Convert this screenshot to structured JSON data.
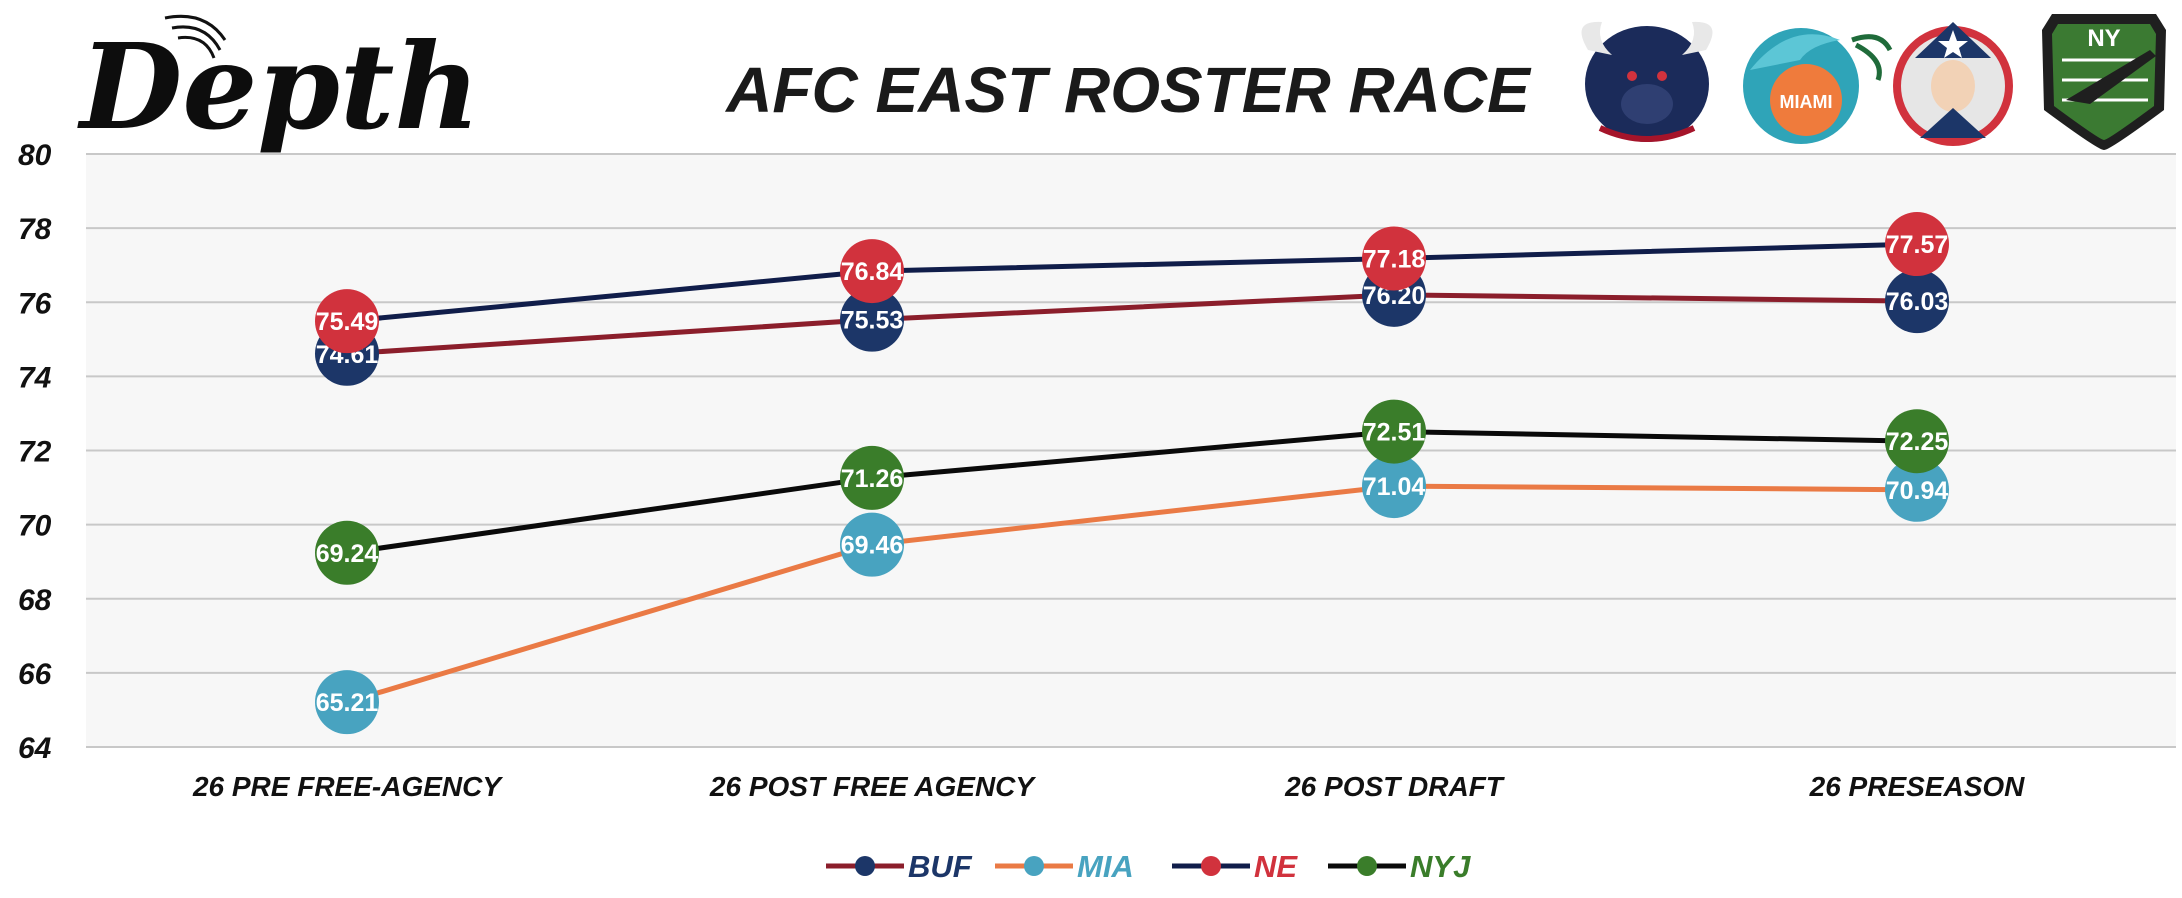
{
  "brand": {
    "logo_text": "Depth"
  },
  "chart_data": {
    "type": "line",
    "title": "AFC EAST ROSTER RACE",
    "categories": [
      "26 PRE FREE-AGENCY",
      "26 POST FREE AGENCY",
      "26 POST DRAFT",
      "26 PRESEASON"
    ],
    "ylim": [
      64,
      80
    ],
    "yticks": [
      64,
      66,
      68,
      70,
      72,
      74,
      76,
      78,
      80
    ],
    "grid": true,
    "legend_position": "bottom-center",
    "series": [
      {
        "name": "BUF",
        "values": [
          74.61,
          75.53,
          76.2,
          76.03
        ],
        "line_color": "#8b1e2b",
        "marker_color": "#1c3668",
        "label_color": "#1c3668"
      },
      {
        "name": "MIA",
        "values": [
          65.21,
          69.46,
          71.04,
          70.94
        ],
        "line_color": "#ea7a45",
        "marker_color": "#48a3c0",
        "label_color": "#48a3c0"
      },
      {
        "name": "NE",
        "values": [
          75.49,
          76.84,
          77.18,
          77.57
        ],
        "line_color": "#101d4a",
        "marker_color": "#d1323d",
        "label_color": "#d1323d"
      },
      {
        "name": "NYJ",
        "values": [
          69.24,
          71.26,
          72.51,
          72.25
        ],
        "line_color": "#0a0a0a",
        "marker_color": "#3a7d2a",
        "label_color": "#3a7d2a"
      }
    ]
  },
  "team_logos": [
    {
      "team": "BUF",
      "icon": "bull-icon"
    },
    {
      "team": "MIA",
      "icon": "dolphin-icon",
      "text": "MIAMI"
    },
    {
      "team": "NE",
      "icon": "patriot-icon"
    },
    {
      "team": "NYJ",
      "icon": "jet-shield-icon",
      "text": "NY"
    }
  ]
}
